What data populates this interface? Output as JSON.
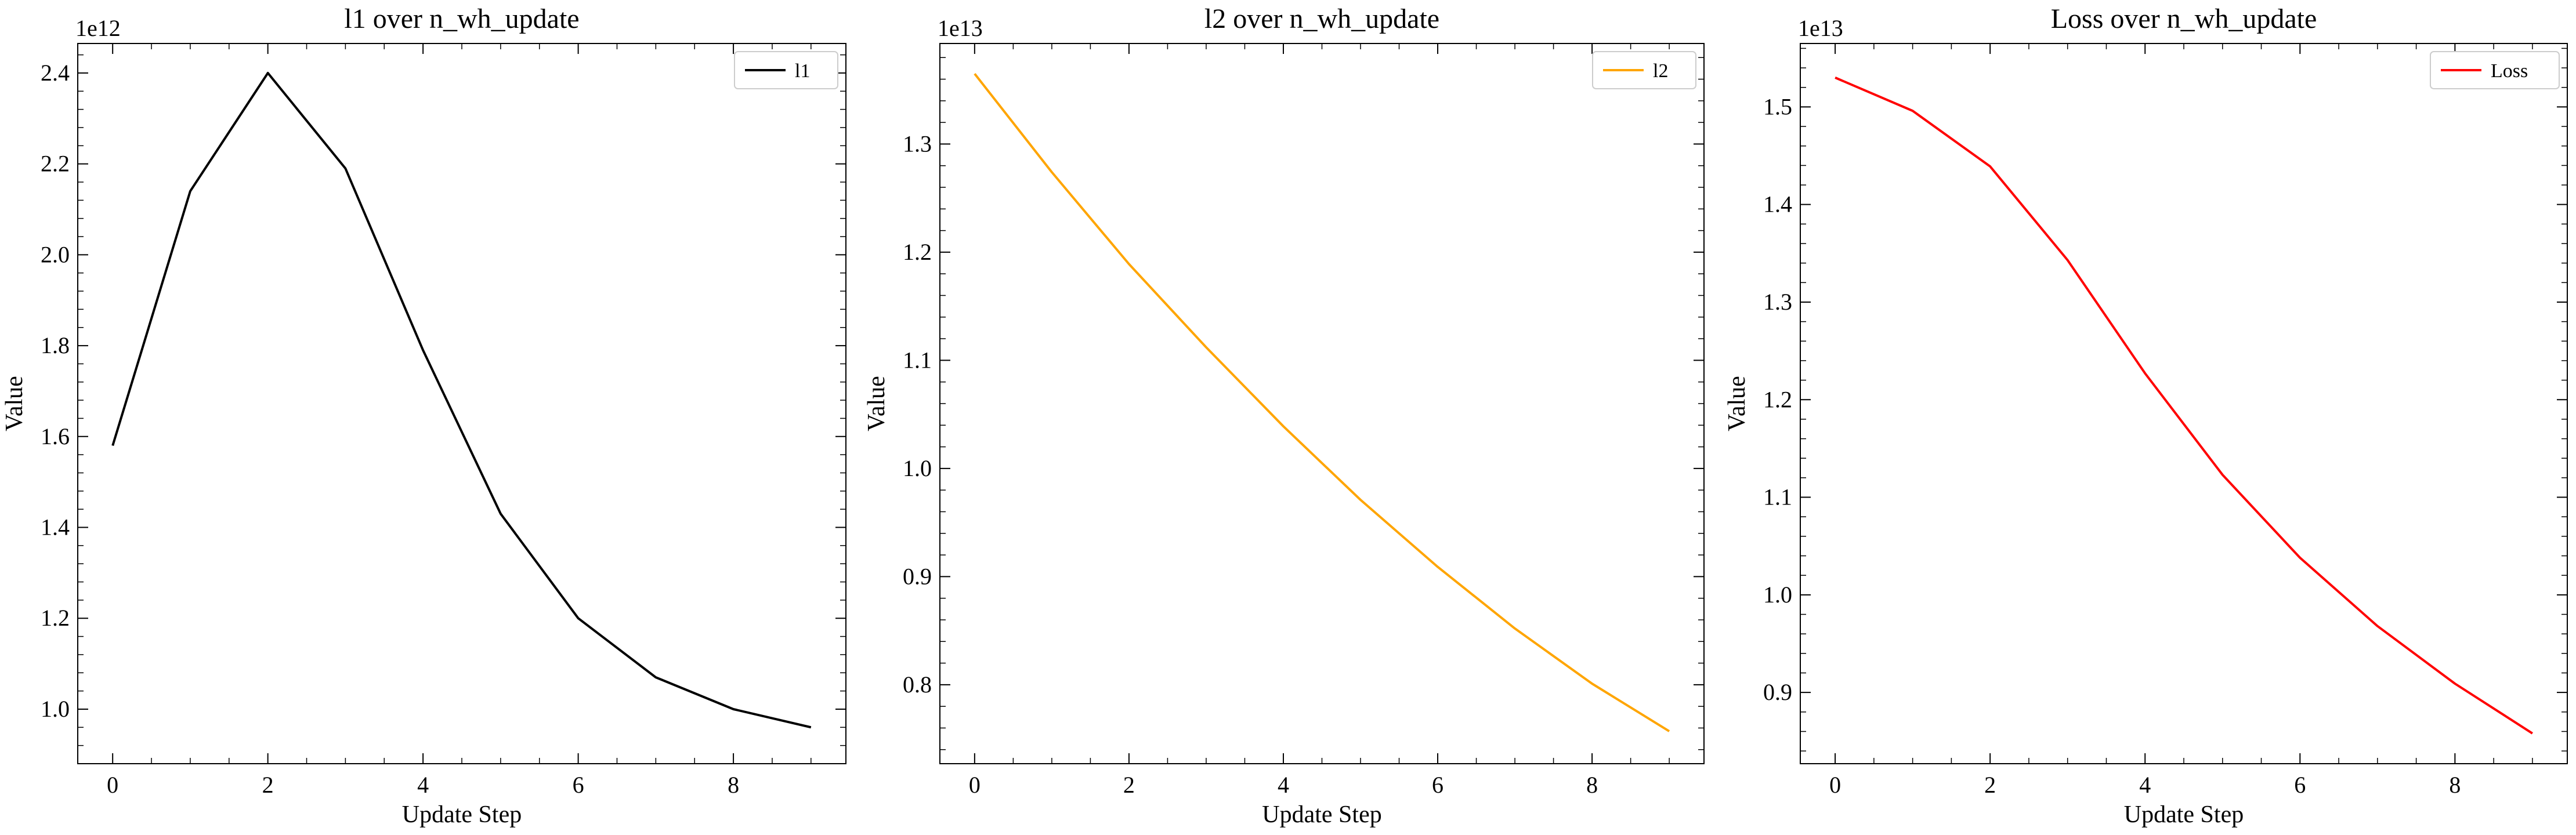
{
  "chart_data": [
    {
      "type": "line",
      "title": "l1 over n_wh_update",
      "xlabel": "Update Step",
      "ylabel": "Value",
      "y_offset_label": "1e12",
      "xlim": [
        -0.45,
        9.45
      ],
      "ylim": [
        0.88,
        2.465
      ],
      "x_ticks": [
        0,
        2,
        4,
        6,
        8
      ],
      "x_tick_labels": [
        "0",
        "2",
        "4",
        "6",
        "8"
      ],
      "y_ticks": [
        1.0,
        1.2,
        1.4,
        1.6,
        1.8,
        2.0,
        2.2,
        2.4
      ],
      "y_tick_labels": [
        "1.0",
        "1.2",
        "1.4",
        "1.6",
        "1.8",
        "2.0",
        "2.2",
        "2.4"
      ],
      "legend_position": "top-right",
      "series": [
        {
          "name": "l1",
          "color": "#000000",
          "x": [
            0,
            1,
            2,
            3,
            4,
            5,
            6,
            7,
            8,
            9
          ],
          "values": [
            1.58,
            2.14,
            2.4,
            2.19,
            1.79,
            1.43,
            1.2,
            1.07,
            1.0,
            0.96
          ]
        }
      ]
    },
    {
      "type": "line",
      "title": "l2 over n_wh_update",
      "xlabel": "Update Step",
      "ylabel": "Value",
      "y_offset_label": "1e13",
      "xlim": [
        -0.45,
        9.45
      ],
      "ylim": [
        0.727,
        1.393
      ],
      "x_ticks": [
        0,
        2,
        4,
        6,
        8
      ],
      "x_tick_labels": [
        "0",
        "2",
        "4",
        "6",
        "8"
      ],
      "y_ticks": [
        0.8,
        0.9,
        1.0,
        1.1,
        1.2,
        1.3
      ],
      "y_tick_labels": [
        "0.8",
        "0.9",
        "1.0",
        "1.1",
        "1.2",
        "1.3"
      ],
      "legend_position": "top-right",
      "series": [
        {
          "name": "l2",
          "color": "#ffa500",
          "x": [
            0,
            1,
            2,
            3,
            4,
            5,
            6,
            7,
            8,
            9
          ],
          "values": [
            1.365,
            1.274,
            1.189,
            1.112,
            1.039,
            0.971,
            0.909,
            0.852,
            0.801,
            0.757
          ]
        }
      ]
    },
    {
      "type": "line",
      "title": "Loss over n_wh_update",
      "xlabel": "Update Step",
      "ylabel": "Value",
      "y_offset_label": "1e13",
      "xlim": [
        -0.45,
        9.45
      ],
      "ylim": [
        0.827,
        1.565
      ],
      "x_ticks": [
        0,
        2,
        4,
        6,
        8
      ],
      "x_tick_labels": [
        "0",
        "2",
        "4",
        "6",
        "8"
      ],
      "y_ticks": [
        0.9,
        1.0,
        1.1,
        1.2,
        1.3,
        1.4,
        1.5
      ],
      "y_tick_labels": [
        "0.9",
        "1.0",
        "1.1",
        "1.2",
        "1.3",
        "1.4",
        "1.5"
      ],
      "legend_position": "top-right",
      "series": [
        {
          "name": "Loss",
          "color": "#ff0000",
          "x": [
            0,
            1,
            2,
            3,
            4,
            5,
            6,
            7,
            8,
            9
          ],
          "values": [
            1.53,
            1.496,
            1.439,
            1.343,
            1.227,
            1.123,
            1.038,
            0.968,
            0.909,
            0.858
          ]
        }
      ]
    }
  ]
}
